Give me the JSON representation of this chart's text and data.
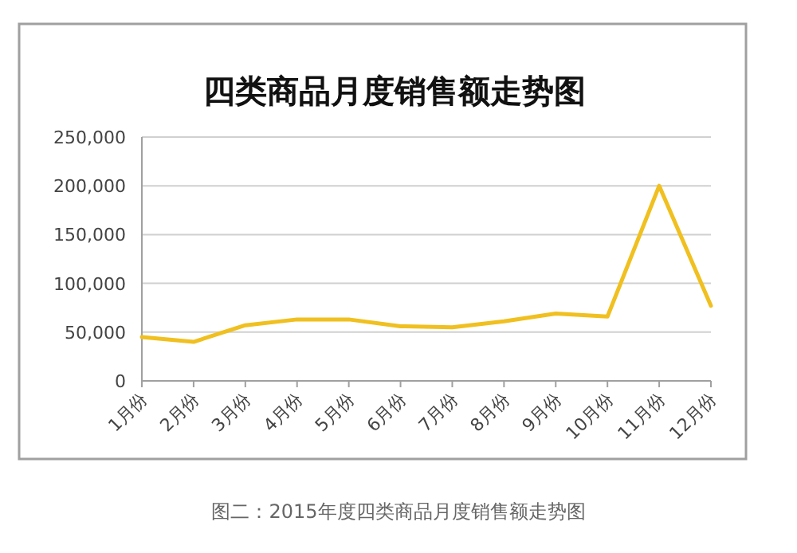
{
  "chart_data": {
    "type": "line",
    "title": "四类商品月度销售额走势图",
    "categories": [
      "1月份",
      "2月份",
      "3月份",
      "4月份",
      "5月份",
      "6月份",
      "7月份",
      "8月份",
      "9月份",
      "10月份",
      "11月份",
      "12月份"
    ],
    "values": [
      45000,
      40000,
      57000,
      63000,
      63000,
      56000,
      55000,
      61000,
      69000,
      66000,
      200000,
      77000
    ],
    "color": "#f0c020",
    "ylim": [
      0,
      250000
    ],
    "yticks": [
      {
        "value": 0,
        "label": "0"
      },
      {
        "value": 50000,
        "label": "50,000"
      },
      {
        "value": 100000,
        "label": "100,000"
      },
      {
        "value": 150000,
        "label": "150,000"
      },
      {
        "value": 200000,
        "label": "200,000"
      },
      {
        "value": 250000,
        "label": "250,000"
      }
    ],
    "grid": "y",
    "annotations": [
      "图二：2015年度四类商品月度销售额走势图"
    ]
  }
}
